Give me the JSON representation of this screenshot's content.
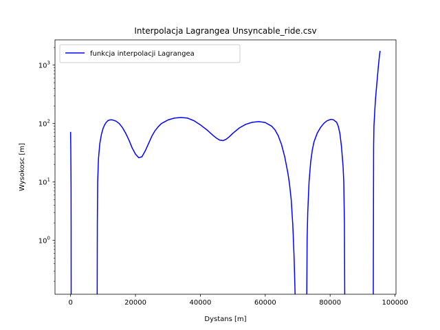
{
  "chart_data": {
    "type": "line",
    "title": "Interpolacja Lagrangea Unsyncable_ride.csv",
    "xlabel": "Dystans [m]",
    "ylabel": "Wysokosc [m]",
    "xlim": [
      -4800,
      100300
    ],
    "ylim": [
      0.12,
      2700
    ],
    "yscale": "log",
    "grid": false,
    "legend_position": "top-left",
    "x_ticks": [
      {
        "value": 0,
        "label": "0"
      },
      {
        "value": 20000,
        "label": "20000"
      },
      {
        "value": 40000,
        "label": "40000"
      },
      {
        "value": 60000,
        "label": "60000"
      },
      {
        "value": 80000,
        "label": "80000"
      },
      {
        "value": 100000,
        "label": "100000"
      }
    ],
    "y_ticks": [
      {
        "value": 1,
        "base": "10",
        "exp": "0"
      },
      {
        "value": 10,
        "base": "10",
        "exp": "1"
      },
      {
        "value": 100,
        "base": "10",
        "exp": "2"
      },
      {
        "value": 1000,
        "base": "10",
        "exp": "3"
      }
    ],
    "series": [
      {
        "name": "funkcja interpolacji Lagrangea",
        "color": "#0000ff",
        "segments": [
          [
            [
              0,
              72
            ],
            [
              60,
              40
            ],
            [
              120,
              15
            ],
            [
              150,
              8
            ],
            [
              170,
              2
            ],
            [
              180,
              0.12
            ]
          ],
          [
            [
              8200,
              0.12
            ],
            [
              8250,
              2
            ],
            [
              8350,
              10
            ],
            [
              8600,
              25
            ],
            [
              9000,
              45
            ],
            [
              9500,
              65
            ],
            [
              10000,
              82
            ],
            [
              10500,
              95
            ],
            [
              11000,
              105
            ],
            [
              11500,
              112
            ],
            [
              12000,
              115
            ],
            [
              12500,
              116
            ],
            [
              13000,
              115
            ],
            [
              14000,
              110
            ],
            [
              15000,
              100
            ],
            [
              16000,
              85
            ],
            [
              17000,
              68
            ],
            [
              18000,
              52
            ],
            [
              19000,
              38
            ],
            [
              20000,
              30
            ],
            [
              21000,
              26
            ],
            [
              22000,
              27
            ],
            [
              23000,
              34
            ],
            [
              24000,
              45
            ],
            [
              25000,
              60
            ],
            [
              26000,
              75
            ],
            [
              27000,
              88
            ],
            [
              28000,
              100
            ],
            [
              30000,
              115
            ],
            [
              32000,
              124
            ],
            [
              34000,
              127
            ],
            [
              36000,
              124
            ],
            [
              38000,
              112
            ],
            [
              40000,
              95
            ],
            [
              42000,
              78
            ],
            [
              44000,
              62
            ],
            [
              45000,
              56
            ],
            [
              46000,
              52
            ],
            [
              47000,
              51
            ],
            [
              48000,
              54
            ],
            [
              49000,
              60
            ],
            [
              50000,
              68
            ],
            [
              52000,
              84
            ],
            [
              54000,
              97
            ],
            [
              56000,
              105
            ],
            [
              58000,
              108
            ],
            [
              60000,
              104
            ],
            [
              62000,
              90
            ],
            [
              63000,
              78
            ],
            [
              64000,
              62
            ],
            [
              65000,
              44
            ],
            [
              66000,
              27
            ],
            [
              67000,
              14
            ],
            [
              67500,
              9
            ],
            [
              68000,
              5
            ],
            [
              68500,
              1.8
            ],
            [
              68900,
              0.5
            ],
            [
              69200,
              0.12
            ]
          ],
          [
            [
              72800,
              0.12
            ],
            [
              72900,
              1
            ],
            [
              73100,
              3
            ],
            [
              73500,
              10
            ],
            [
              74000,
              22
            ],
            [
              74500,
              35
            ],
            [
              75000,
              48
            ],
            [
              76000,
              68
            ],
            [
              77000,
              85
            ],
            [
              78000,
              100
            ],
            [
              79000,
              111
            ],
            [
              80000,
              117
            ],
            [
              80500,
              118
            ],
            [
              81000,
              116
            ],
            [
              82000,
              105
            ],
            [
              82500,
              90
            ],
            [
              83000,
              68
            ],
            [
              83500,
              40
            ],
            [
              84000,
              18
            ],
            [
              84200,
              10
            ],
            [
              84400,
              2
            ],
            [
              84500,
              0.12
            ]
          ],
          [
            [
              93300,
              0.12
            ],
            [
              93400,
              40
            ],
            [
              93500,
              90
            ],
            [
              93800,
              180
            ],
            [
              94000,
              270
            ],
            [
              94300,
              420
            ],
            [
              94600,
              650
            ],
            [
              94900,
              1000
            ],
            [
              95200,
              1450
            ],
            [
              95400,
              1750
            ]
          ]
        ]
      }
    ]
  }
}
